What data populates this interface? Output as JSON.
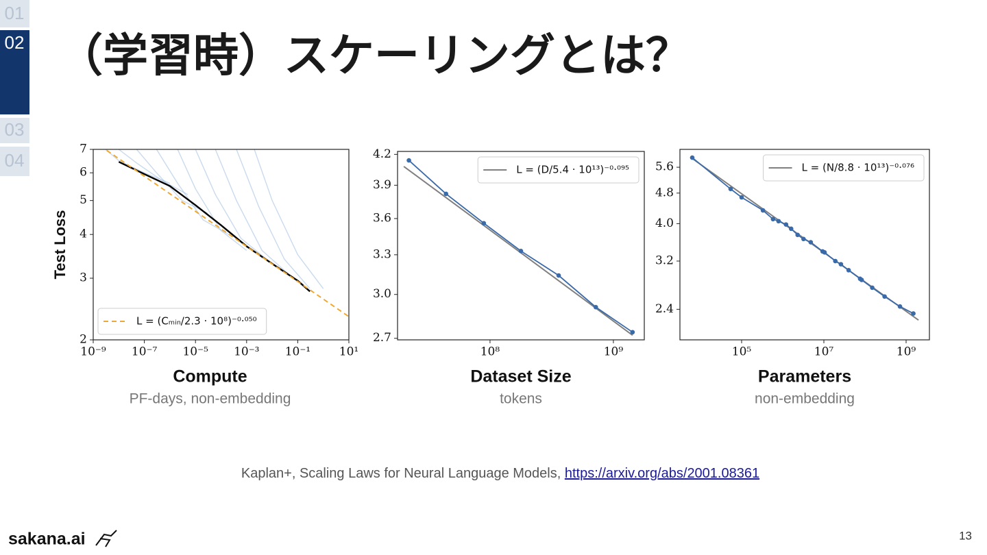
{
  "nav": [
    "01",
    "02",
    "03",
    "04"
  ],
  "title": "（学習時）スケーリングとは？",
  "chart_data": [
    {
      "type": "line",
      "xlabel": "Compute",
      "xlabel_note": "PF-days, non-embedding",
      "ylabel": "Test Loss",
      "xscale": "log",
      "yscale": "log",
      "xlim": [
        1e-09,
        10
      ],
      "ylim": [
        2,
        7
      ],
      "xticks": [
        {
          "value": 1e-09,
          "label": "10⁻⁹"
        },
        {
          "value": 1e-07,
          "label": "10⁻⁷"
        },
        {
          "value": 1e-05,
          "label": "10⁻⁵"
        },
        {
          "value": 0.001,
          "label": "10⁻³"
        },
        {
          "value": 0.1,
          "label": "10⁻¹"
        },
        {
          "value": 10,
          "label": "10¹"
        }
      ],
      "yticks": [
        2,
        3,
        4,
        5,
        6,
        7
      ],
      "grid": false,
      "legend": "lower left",
      "series": [
        {
          "color": "#9dbbe0",
          "alpha": 0.55,
          "x": [
            3e-09,
            1e-08,
            1e-07,
            1e-06
          ],
          "values": [
            7,
            6.5,
            6.0,
            5.6
          ]
        },
        {
          "color": "#9dbbe0",
          "alpha": 0.55,
          "x": [
            1e-08,
            5e-08,
            5e-07,
            5e-06
          ],
          "values": [
            7,
            6.4,
            5.7,
            5.2
          ]
        },
        {
          "color": "#9dbbe0",
          "alpha": 0.55,
          "x": [
            5e-08,
            3e-07,
            3e-06,
            3e-05
          ],
          "values": [
            7,
            6.0,
            5.0,
            4.6
          ]
        },
        {
          "color": "#9dbbe0",
          "alpha": 0.55,
          "x": [
            3e-07,
            2e-06,
            2e-05,
            0.0002
          ],
          "values": [
            7,
            5.6,
            4.4,
            4.0
          ]
        },
        {
          "color": "#9dbbe0",
          "alpha": 0.55,
          "x": [
            2e-06,
            1e-05,
            0.0001,
            0.001
          ],
          "values": [
            7,
            5.4,
            4.1,
            3.6
          ]
        },
        {
          "color": "#9dbbe0",
          "alpha": 0.55,
          "x": [
            1e-05,
            6e-05,
            0.0006,
            0.006
          ],
          "values": [
            7,
            5.2,
            3.9,
            3.4
          ]
        },
        {
          "color": "#9dbbe0",
          "alpha": 0.55,
          "x": [
            6e-05,
            0.0004,
            0.004,
            0.04
          ],
          "values": [
            7,
            5.0,
            3.6,
            3.1
          ]
        },
        {
          "color": "#9dbbe0",
          "alpha": 0.55,
          "x": [
            0.0004,
            0.003,
            0.03,
            0.3
          ],
          "values": [
            7,
            4.8,
            3.4,
            2.8
          ]
        },
        {
          "color": "#9dbbe0",
          "alpha": 0.55,
          "x": [
            0.002,
            0.01,
            0.1,
            1
          ],
          "values": [
            7,
            5.0,
            3.5,
            2.8
          ]
        },
        {
          "color": "#000000",
          "x": [
            1e-08,
            1e-07,
            1e-06,
            1e-05,
            0.0001,
            0.001,
            0.01,
            0.1,
            0.3
          ],
          "values": [
            6.45,
            5.95,
            5.5,
            4.85,
            4.25,
            3.7,
            3.3,
            2.95,
            2.75
          ]
        },
        {
          "name": "L = (Cₘᵢₙ/2.3 · 10⁸)⁻⁰·⁰⁵⁰",
          "color": "#f0a830",
          "line_style": "dashed",
          "x": [
            1e-09,
            10
          ],
          "values": [
            7.39,
            2.33
          ]
        }
      ]
    },
    {
      "type": "line",
      "xlabel": "Dataset Size",
      "xlabel_note": "tokens",
      "xscale": "log",
      "yscale": "log",
      "xlim": [
        17800000,
        1780000000
      ],
      "ylim": [
        2.69,
        4.23
      ],
      "xticks": [
        {
          "value": 100000000,
          "label": "10⁸"
        },
        {
          "value": 1000000000,
          "label": "10⁹"
        }
      ],
      "yticks": [
        2.7,
        {
          "value": 3,
          "label": "3.0"
        },
        3.3,
        3.6,
        3.9,
        4.2
      ],
      "grid": false,
      "legend": "upper right",
      "series": [
        {
          "name": "L = (D/5.4 · 10¹³)⁻⁰·⁰⁹⁵",
          "color": "#808080",
          "x": [
            20000000,
            1430000000
          ],
          "values": [
            4.08,
            2.72
          ]
        },
        {
          "color": "#3a6aa8",
          "marker": "o",
          "x": [
            22000000,
            44000000,
            89000000,
            178000000,
            360000000,
            720000000,
            1430000000
          ],
          "values": [
            4.14,
            3.82,
            3.56,
            3.33,
            3.14,
            2.91,
            2.74
          ]
        }
      ]
    },
    {
      "type": "line",
      "xlabel": "Parameters",
      "xlabel_note": "non-embedding",
      "xscale": "log",
      "yscale": "log",
      "xlim": [
        3160,
        3690000000
      ],
      "ylim": [
        2.0,
        6.23
      ],
      "xticks": [
        {
          "value": 100000,
          "label": "10⁵"
        },
        {
          "value": 10000000,
          "label": "10⁷"
        },
        {
          "value": 1000000000,
          "label": "10⁹"
        }
      ],
      "yticks": [
        2.4,
        3.2,
        {
          "value": 4,
          "label": "4.0"
        },
        4.8,
        5.6
      ],
      "grid": false,
      "legend": "upper right",
      "series": [
        {
          "name": "L = (N/8.8 · 10¹³)⁻⁰·⁰⁷⁶",
          "color": "#808080",
          "x": [
            6300,
            2000000000
          ],
          "values": [
            5.9,
            2.25
          ]
        },
        {
          "color": "#3a6aa8",
          "marker": "o",
          "x": [
            6300,
            54000,
            100000,
            330000,
            580000,
            790000,
            1200000,
            1600000,
            2300000,
            3200000,
            4800000,
            9300000,
            10400000,
            19000000,
            26000000,
            40000000,
            76000000,
            83000000,
            150000000,
            300000000,
            710000000,
            1500000000
          ],
          "values": [
            5.93,
            4.92,
            4.68,
            4.33,
            4.11,
            4.06,
            3.98,
            3.88,
            3.74,
            3.65,
            3.58,
            3.39,
            3.37,
            3.2,
            3.14,
            3.03,
            2.88,
            2.86,
            2.73,
            2.59,
            2.44,
            2.34
          ]
        }
      ]
    }
  ],
  "citation": {
    "text": "Kaplan+, Scaling Laws for Neural Language Models, ",
    "link": "https://arxiv.org/abs/2001.08361"
  },
  "logo": "sakana.ai",
  "page_number": 13
}
